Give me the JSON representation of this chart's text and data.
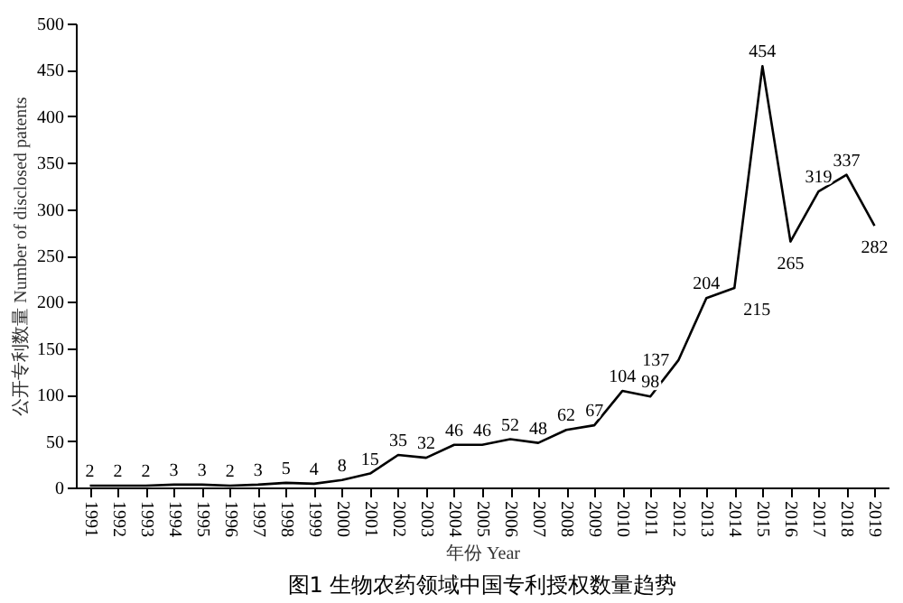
{
  "chart_data": {
    "type": "line",
    "title": "图1 生物农药领域中国专利授权数量趋势",
    "xlabel": "年份 Year",
    "ylabel": "公开专利数量 Number of disclosed patents",
    "categories": [
      "1991",
      "1992",
      "1993",
      "1994",
      "1995",
      "1996",
      "1997",
      "1998",
      "1999",
      "2000",
      "2001",
      "2002",
      "2003",
      "2004",
      "2005",
      "2006",
      "2007",
      "2008",
      "2009",
      "2010",
      "2011",
      "2012",
      "2013",
      "2014",
      "2015",
      "2016",
      "2017",
      "2018",
      "2019"
    ],
    "series": [
      {
        "color": "#000000",
        "values": [
          2,
          2,
          2,
          3,
          3,
          2,
          3,
          5,
          4,
          8,
          15,
          35,
          32,
          46,
          46,
          52,
          48,
          62,
          67,
          104,
          98,
          137,
          204,
          215,
          454,
          265,
          319,
          337,
          282
        ]
      }
    ],
    "ylim": [
      0,
      500
    ],
    "yticks": [
      0,
      50,
      100,
      150,
      200,
      250,
      300,
      350,
      400,
      450,
      500
    ],
    "data_labels": true,
    "grid": false,
    "legend": false,
    "marker": "none",
    "line_style": "solid"
  }
}
